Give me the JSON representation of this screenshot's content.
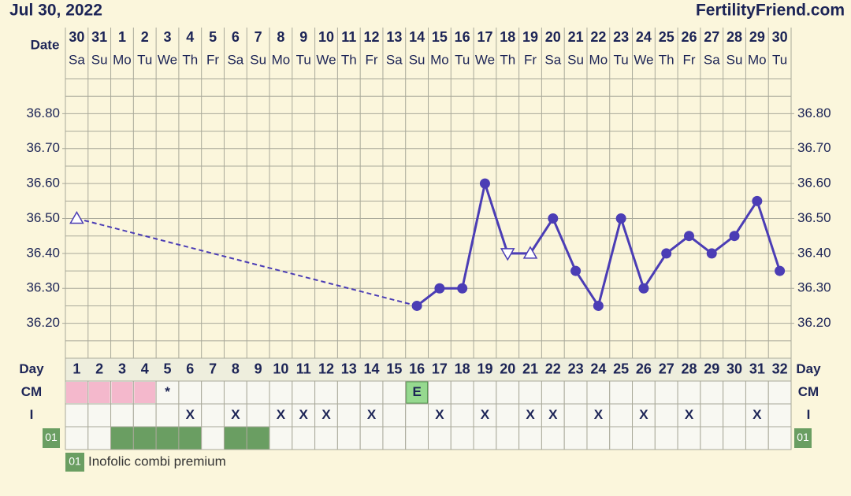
{
  "header": {
    "date": "Jul 30, 2022",
    "site": "FertilityFriend.com"
  },
  "chart_data": {
    "type": "line",
    "date_label": "Date",
    "day_label": "Day",
    "dates": [
      30,
      31,
      1,
      2,
      3,
      4,
      5,
      6,
      7,
      8,
      9,
      10,
      11,
      12,
      13,
      14,
      15,
      16,
      17,
      18,
      19,
      20,
      21,
      22,
      23,
      24,
      25,
      26,
      27,
      28,
      29,
      30
    ],
    "weekdays": [
      "Sa",
      "Su",
      "Mo",
      "Tu",
      "We",
      "Th",
      "Fr",
      "Sa",
      "Su",
      "Mo",
      "Tu",
      "We",
      "Th",
      "Fr",
      "Sa",
      "Su",
      "Mo",
      "Tu",
      "We",
      "Th",
      "Fr",
      "Sa",
      "Su",
      "Mo",
      "Tu",
      "We",
      "Th",
      "Fr",
      "Sa",
      "Su",
      "Mo",
      "Tu"
    ],
    "categories": [
      1,
      2,
      3,
      4,
      5,
      6,
      7,
      8,
      9,
      10,
      11,
      12,
      13,
      14,
      15,
      16,
      17,
      18,
      19,
      20,
      21,
      22,
      23,
      24,
      25,
      26,
      27,
      28,
      29,
      30,
      31,
      32
    ],
    "values": [
      36.5,
      null,
      null,
      null,
      null,
      null,
      null,
      null,
      null,
      null,
      null,
      null,
      null,
      null,
      null,
      36.25,
      36.3,
      36.3,
      36.6,
      36.4,
      36.4,
      36.5,
      36.35,
      36.25,
      36.5,
      36.3,
      36.4,
      36.45,
      36.4,
      36.45,
      36.55,
      36.35
    ],
    "markers": [
      "triangle-up",
      null,
      null,
      null,
      null,
      null,
      null,
      null,
      null,
      null,
      null,
      null,
      null,
      null,
      null,
      "circle",
      "circle",
      "circle",
      "circle",
      "triangle-down",
      "triangle-up",
      "circle",
      "circle",
      "circle",
      "circle",
      "circle",
      "circle",
      "circle",
      "circle",
      "circle",
      "circle",
      "circle"
    ],
    "gap_style": "dashed",
    "color": "#4b3db5",
    "ylim": [
      36.1,
      36.9
    ],
    "yticks": [
      {
        "value": 36.2,
        "label": "36.20"
      },
      {
        "value": 36.3,
        "label": "36.30"
      },
      {
        "value": 36.4,
        "label": "36.40"
      },
      {
        "value": 36.5,
        "label": "36.50"
      },
      {
        "value": 36.6,
        "label": "36.60"
      },
      {
        "value": 36.7,
        "label": "36.70"
      },
      {
        "value": 36.8,
        "label": "36.80"
      }
    ],
    "minor_yticks": [
      36.15,
      36.25,
      36.35,
      36.45,
      36.55,
      36.65,
      36.75,
      36.85
    ],
    "grid": true,
    "cm": {
      "label": "CM",
      "cells": [
        null,
        null,
        null,
        null,
        "*",
        null,
        null,
        null,
        null,
        null,
        null,
        null,
        null,
        null,
        null,
        "E",
        null,
        null,
        null,
        null,
        null,
        null,
        null,
        null,
        null,
        null,
        null,
        null,
        null,
        null,
        null,
        null
      ],
      "colors": [
        "#f4b8cc",
        "#f4b8cc",
        "#f4b8cc",
        "#f4b8cc",
        null,
        null,
        null,
        null,
        null,
        null,
        null,
        null,
        null,
        null,
        null,
        "#96d98f",
        null,
        null,
        null,
        null,
        null,
        null,
        null,
        null,
        null,
        null,
        null,
        null,
        null,
        null,
        null,
        null
      ]
    },
    "intercourse": {
      "label": "I",
      "cells": [
        null,
        null,
        null,
        null,
        null,
        "X",
        null,
        "X",
        null,
        "X",
        "X",
        "X",
        null,
        "X",
        null,
        null,
        "X",
        null,
        "X",
        null,
        "X",
        "X",
        null,
        "X",
        null,
        "X",
        null,
        "X",
        null,
        null,
        "X",
        null
      ]
    },
    "supplement": {
      "label": "01",
      "name": "Inofolic combi premium",
      "color": "#6a9e62",
      "cells": [
        false,
        false,
        true,
        true,
        true,
        true,
        false,
        true,
        true,
        false,
        false,
        false,
        false,
        false,
        false,
        false,
        false,
        false,
        false,
        false,
        false,
        false,
        false,
        false,
        false,
        false,
        false,
        false,
        false,
        false,
        false,
        false
      ]
    }
  }
}
